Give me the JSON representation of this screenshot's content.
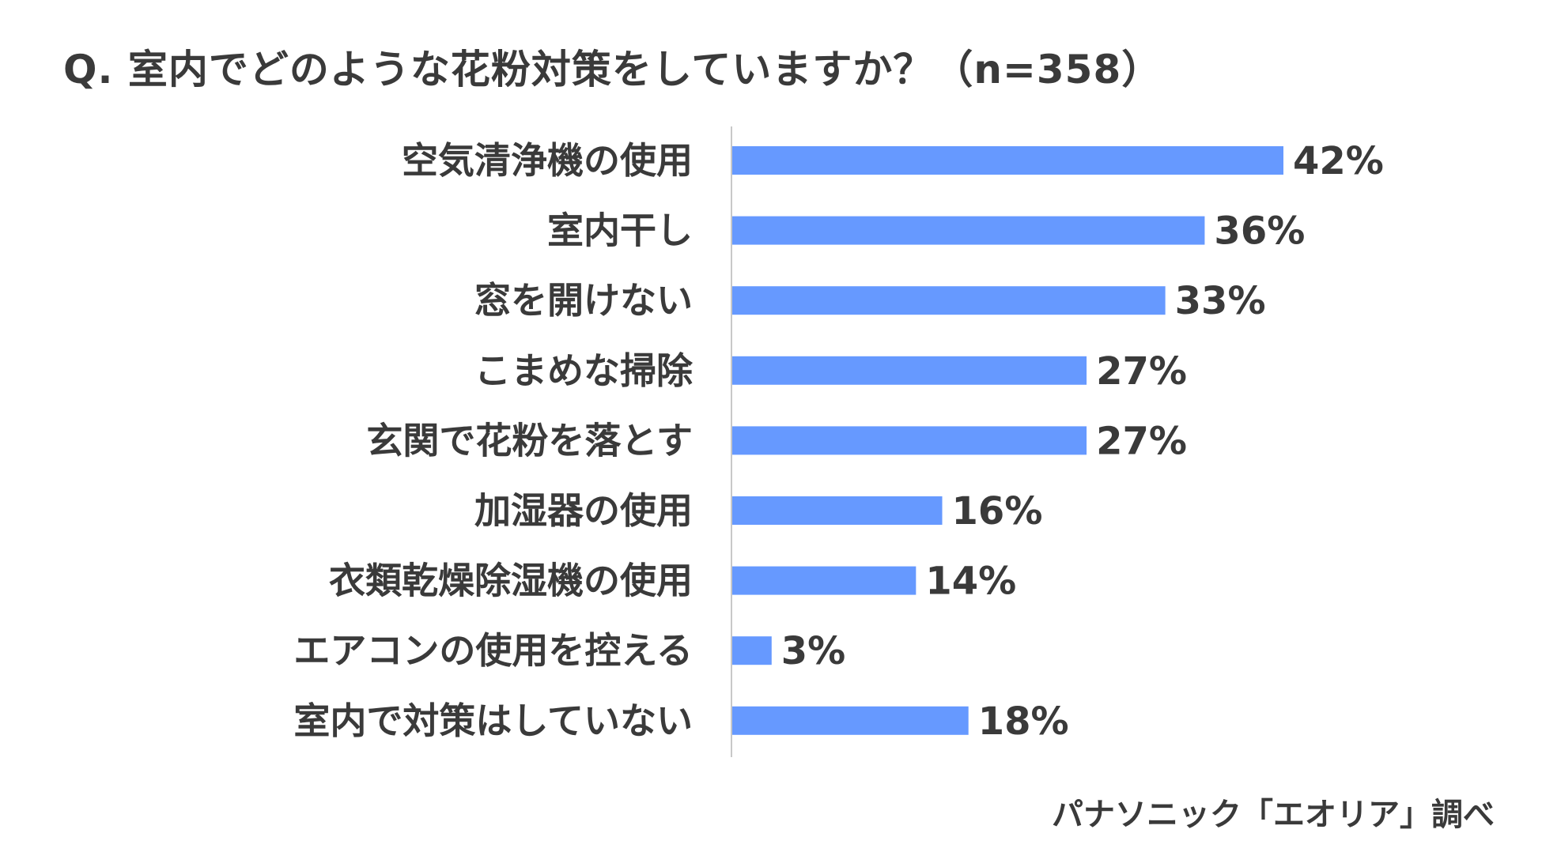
{
  "title": "Q. 室内でどのような花粉対策をしていますか？（n=358）",
  "source": "パナソニック「エオリア」調べ",
  "colors": {
    "bar": "#6699ff",
    "axis": "#c8c8c8",
    "text": "#3a3a3a"
  },
  "chart_data": {
    "type": "bar",
    "orientation": "horizontal",
    "categories": [
      "空気清浄機の使用",
      "室内干し",
      "窓を開けない",
      "こまめな掃除",
      "玄関で花粉を落とす",
      "加湿器の使用",
      "衣類乾燥除湿機の使用",
      "エアコンの使用を控える",
      "室内で対策はしていない"
    ],
    "values": [
      42,
      36,
      33,
      27,
      27,
      16,
      14,
      3,
      18
    ],
    "value_labels": [
      "42%",
      "36%",
      "33%",
      "27%",
      "27%",
      "16%",
      "14%",
      "3%",
      "18%"
    ],
    "unit": "%",
    "xlim": [
      0,
      42
    ],
    "grid": false,
    "legend": "none"
  }
}
